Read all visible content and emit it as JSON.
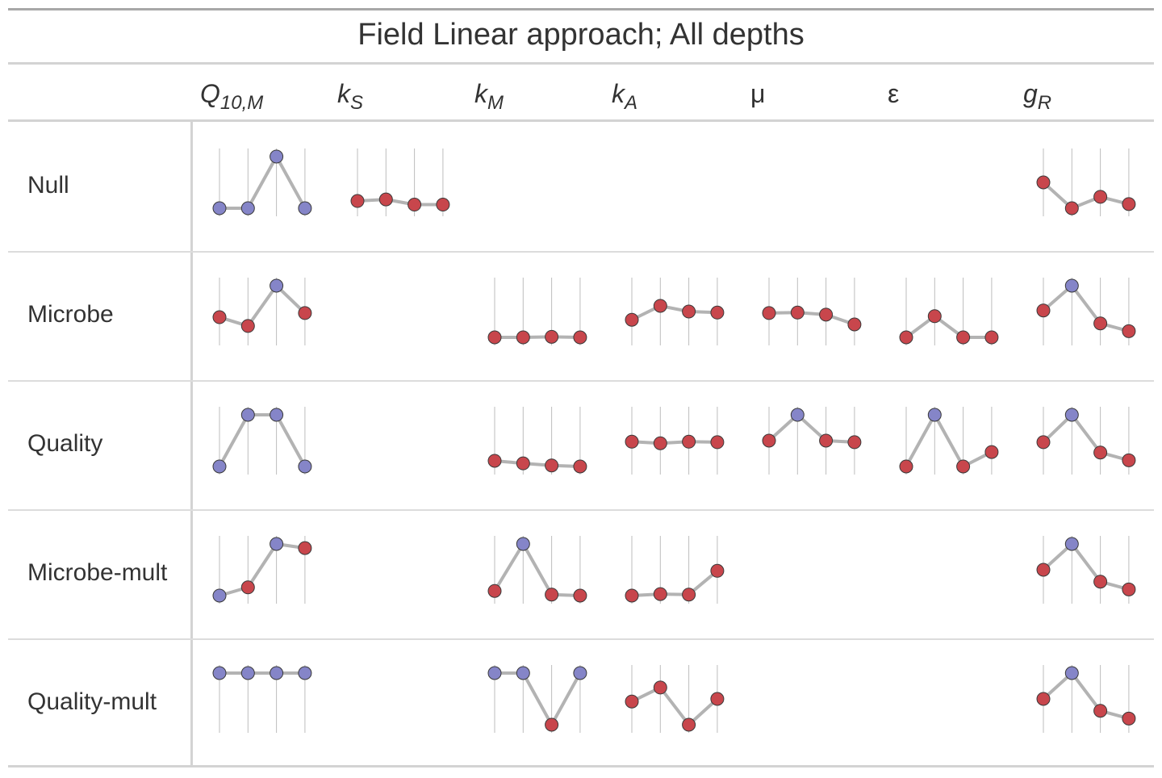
{
  "table": {
    "title": "Field Linear approach; All depths",
    "columns": [
      {
        "key": "Q10M",
        "base": "Q",
        "sub": "10,M",
        "italic": true
      },
      {
        "key": "kS",
        "base": "k",
        "sub": "S",
        "italic": true
      },
      {
        "key": "kM",
        "base": "k",
        "sub": "M",
        "italic": true
      },
      {
        "key": "kA",
        "base": "k",
        "sub": "A",
        "italic": true
      },
      {
        "key": "mu",
        "base": "μ",
        "sub": "",
        "italic": false
      },
      {
        "key": "eps",
        "base": "ε",
        "sub": "",
        "italic": false
      },
      {
        "key": "gR",
        "base": "g",
        "sub": "R",
        "italic": true
      }
    ],
    "rows": [
      "Null",
      "Microbe",
      "Quality",
      "Microbe-mult",
      "Quality-mult"
    ]
  },
  "colors": {
    "point_blue": "#8585c8",
    "point_red": "#c8464c",
    "line": "#b3b3b3",
    "grid": "#bdbdbd",
    "rule": "#d3d3d3"
  },
  "chart_data": {
    "type": "line",
    "description_units": "sparkline values relative within each cell (0 = low, 1 = high)",
    "cells": [
      {
        "row": "Null",
        "col": "Q10M",
        "values": [
          0.0,
          0.0,
          1.0,
          0.0
        ],
        "colors": [
          "blue",
          "blue",
          "blue",
          "blue"
        ]
      },
      {
        "row": "Null",
        "col": "kS",
        "values": [
          0.14,
          0.17,
          0.07,
          0.07
        ],
        "colors": [
          "red",
          "red",
          "red",
          "red"
        ]
      },
      {
        "row": "Null",
        "col": "gR",
        "values": [
          0.5,
          0.0,
          0.22,
          0.08
        ],
        "colors": [
          "red",
          "red",
          "red",
          "red"
        ]
      },
      {
        "row": "Microbe",
        "col": "Q10M",
        "values": [
          0.39,
          0.22,
          1.0,
          0.47
        ],
        "colors": [
          "red",
          "red",
          "blue",
          "red"
        ]
      },
      {
        "row": "Microbe",
        "col": "kM",
        "values": [
          0.0,
          0.0,
          0.01,
          0.0
        ],
        "colors": [
          "red",
          "red",
          "red",
          "red"
        ]
      },
      {
        "row": "Microbe",
        "col": "kA",
        "values": [
          0.34,
          0.61,
          0.5,
          0.48
        ],
        "colors": [
          "red",
          "red",
          "red",
          "red"
        ]
      },
      {
        "row": "Microbe",
        "col": "mu",
        "values": [
          0.47,
          0.48,
          0.44,
          0.25
        ],
        "colors": [
          "red",
          "red",
          "red",
          "red"
        ]
      },
      {
        "row": "Microbe",
        "col": "eps",
        "values": [
          0.0,
          0.41,
          0.0,
          0.0
        ],
        "colors": [
          "red",
          "red",
          "red",
          "red"
        ]
      },
      {
        "row": "Microbe",
        "col": "gR",
        "values": [
          0.52,
          1.0,
          0.27,
          0.12
        ],
        "colors": [
          "red",
          "blue",
          "red",
          "red"
        ]
      },
      {
        "row": "Quality",
        "col": "Q10M",
        "values": [
          0.0,
          1.0,
          1.0,
          0.0
        ],
        "colors": [
          "blue",
          "blue",
          "blue",
          "blue"
        ]
      },
      {
        "row": "Quality",
        "col": "kM",
        "values": [
          0.11,
          0.06,
          0.02,
          0.0
        ],
        "colors": [
          "red",
          "red",
          "red",
          "red"
        ]
      },
      {
        "row": "Quality",
        "col": "kA",
        "values": [
          0.48,
          0.45,
          0.48,
          0.47
        ],
        "colors": [
          "red",
          "red",
          "red",
          "red"
        ]
      },
      {
        "row": "Quality",
        "col": "mu",
        "values": [
          0.5,
          1.0,
          0.5,
          0.47
        ],
        "colors": [
          "red",
          "blue",
          "red",
          "red"
        ]
      },
      {
        "row": "Quality",
        "col": "eps",
        "values": [
          0.0,
          1.0,
          0.0,
          0.28
        ],
        "colors": [
          "red",
          "blue",
          "red",
          "red"
        ]
      },
      {
        "row": "Quality",
        "col": "gR",
        "values": [
          0.47,
          1.0,
          0.27,
          0.12
        ],
        "colors": [
          "red",
          "blue",
          "red",
          "red"
        ]
      },
      {
        "row": "Microbe-mult",
        "col": "Q10M",
        "values": [
          0.0,
          0.16,
          1.0,
          0.92
        ],
        "colors": [
          "blue",
          "red",
          "blue",
          "red"
        ]
      },
      {
        "row": "Microbe-mult",
        "col": "kM",
        "values": [
          0.09,
          1.0,
          0.02,
          0.0
        ],
        "colors": [
          "red",
          "blue",
          "red",
          "red"
        ]
      },
      {
        "row": "Microbe-mult",
        "col": "kA",
        "values": [
          0.0,
          0.03,
          0.02,
          0.48
        ],
        "colors": [
          "red",
          "red",
          "red",
          "red"
        ]
      },
      {
        "row": "Microbe-mult",
        "col": "gR",
        "values": [
          0.5,
          1.0,
          0.27,
          0.12
        ],
        "colors": [
          "red",
          "blue",
          "red",
          "red"
        ]
      },
      {
        "row": "Quality-mult",
        "col": "Q10M",
        "values": [
          1.0,
          1.0,
          1.0,
          1.0
        ],
        "colors": [
          "blue",
          "blue",
          "blue",
          "blue"
        ]
      },
      {
        "row": "Quality-mult",
        "col": "kM",
        "values": [
          1.0,
          1.0,
          0.0,
          1.0
        ],
        "colors": [
          "blue",
          "blue",
          "red",
          "blue"
        ]
      },
      {
        "row": "Quality-mult",
        "col": "kA",
        "values": [
          0.45,
          0.72,
          0.0,
          0.5
        ],
        "colors": [
          "red",
          "red",
          "red",
          "red"
        ]
      },
      {
        "row": "Quality-mult",
        "col": "gR",
        "values": [
          0.5,
          1.0,
          0.27,
          0.12
        ],
        "colors": [
          "red",
          "blue",
          "red",
          "red"
        ]
      }
    ]
  }
}
